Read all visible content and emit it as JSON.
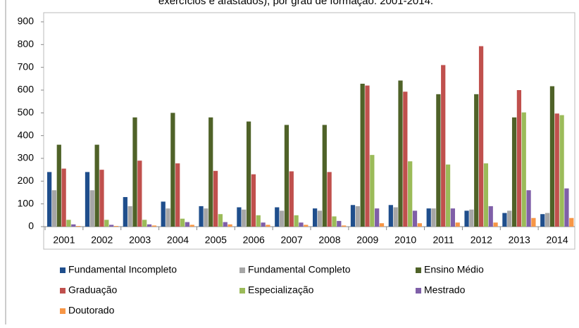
{
  "chart_data": {
    "type": "bar",
    "title": "exercícios e afastados), por grau de formação: 2001-2014.",
    "categories": [
      "2001",
      "2002",
      "2003",
      "2004",
      "2005",
      "2006",
      "2007",
      "2008",
      "2009",
      "2010",
      "2011",
      "2012",
      "2013",
      "2014"
    ],
    "series": [
      {
        "name": "Fundamental Incompleto",
        "color": "#1f4e8c",
        "values": [
          240,
          240,
          130,
          110,
          90,
          85,
          85,
          80,
          95,
          95,
          80,
          70,
          60,
          55
        ]
      },
      {
        "name": "Fundamental Completo",
        "color": "#a6a6a6",
        "values": [
          160,
          160,
          90,
          80,
          80,
          75,
          70,
          70,
          90,
          85,
          80,
          75,
          70,
          60
        ]
      },
      {
        "name": "Ensino Médio",
        "color": "#4f6228",
        "values": [
          360,
          360,
          480,
          500,
          480,
          462,
          447,
          447,
          628,
          642,
          582,
          582,
          480,
          617
        ]
      },
      {
        "name": "Graduação",
        "color": "#c0504d",
        "values": [
          255,
          250,
          290,
          278,
          245,
          230,
          243,
          240,
          620,
          593,
          710,
          793,
          600,
          497
        ]
      },
      {
        "name": "Especialização",
        "color": "#9bbb59",
        "values": [
          30,
          30,
          30,
          35,
          55,
          50,
          50,
          45,
          315,
          287,
          273,
          278,
          502,
          490
        ]
      },
      {
        "name": "Mestrado",
        "color": "#7f5fa8",
        "values": [
          10,
          8,
          10,
          20,
          20,
          18,
          18,
          25,
          80,
          70,
          80,
          90,
          160,
          168
        ]
      },
      {
        "name": "Doutorado",
        "color": "#f79646",
        "values": [
          3,
          3,
          5,
          8,
          10,
          8,
          8,
          5,
          15,
          15,
          18,
          18,
          38,
          38
        ]
      }
    ],
    "ylim": [
      0,
      900
    ],
    "yticks": [
      0,
      100,
      200,
      300,
      400,
      500,
      600,
      700,
      800,
      900
    ]
  }
}
